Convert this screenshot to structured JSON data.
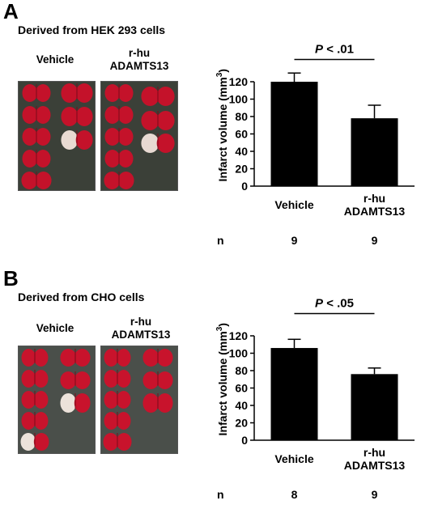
{
  "panels": [
    {
      "letter": "A",
      "title": "Derived from HEK 293 cells",
      "photo_labels": [
        "Vehicle",
        "r-hu",
        "ADAMTS13"
      ],
      "photo_colors": {
        "background": "#3b4038",
        "tissue_red": "#c4122a",
        "tissue_pale": "#e8dad2"
      },
      "chart_data": {
        "type": "bar",
        "categories": [
          "Vehicle",
          "r-hu ADAMTS13"
        ],
        "category_lines": [
          [
            "Vehicle"
          ],
          [
            "r-hu",
            "ADAMTS13"
          ]
        ],
        "values": [
          120,
          78
        ],
        "error_upper": [
          130,
          93
        ],
        "ylabel": "Infarct volume (mm",
        "ylabel_sup": "3",
        "ylabel_close": ")",
        "yticks": [
          0,
          20,
          40,
          60,
          80,
          100,
          120
        ],
        "ylim": [
          0,
          140
        ],
        "significance": {
          "p_symbol": "P",
          "p_rest": " < .01"
        },
        "n_label": "n",
        "n_values": [
          "9",
          "9"
        ],
        "bar_color": "#000000"
      }
    },
    {
      "letter": "B",
      "title": "Derived from CHO cells",
      "photo_labels": [
        "Vehicle",
        "r-hu",
        "ADAMTS13"
      ],
      "photo_colors": {
        "background": "#4a4f4a",
        "tissue_red": "#c8132c",
        "tissue_pale": "#ece2da"
      },
      "chart_data": {
        "type": "bar",
        "categories": [
          "Vehicle",
          "r-hu ADAMTS13"
        ],
        "category_lines": [
          [
            "Vehicle"
          ],
          [
            "r-hu",
            "ADAMTS13"
          ]
        ],
        "values": [
          106,
          76
        ],
        "error_upper": [
          116,
          83
        ],
        "ylabel": "Infarct volume (mm",
        "ylabel_sup": "3",
        "ylabel_close": ")",
        "yticks": [
          0,
          20,
          40,
          60,
          80,
          100,
          120
        ],
        "ylim": [
          0,
          140
        ],
        "significance": {
          "p_symbol": "P",
          "p_rest": " < .05"
        },
        "n_label": "n",
        "n_values": [
          "8",
          "9"
        ],
        "bar_color": "#000000"
      }
    }
  ]
}
